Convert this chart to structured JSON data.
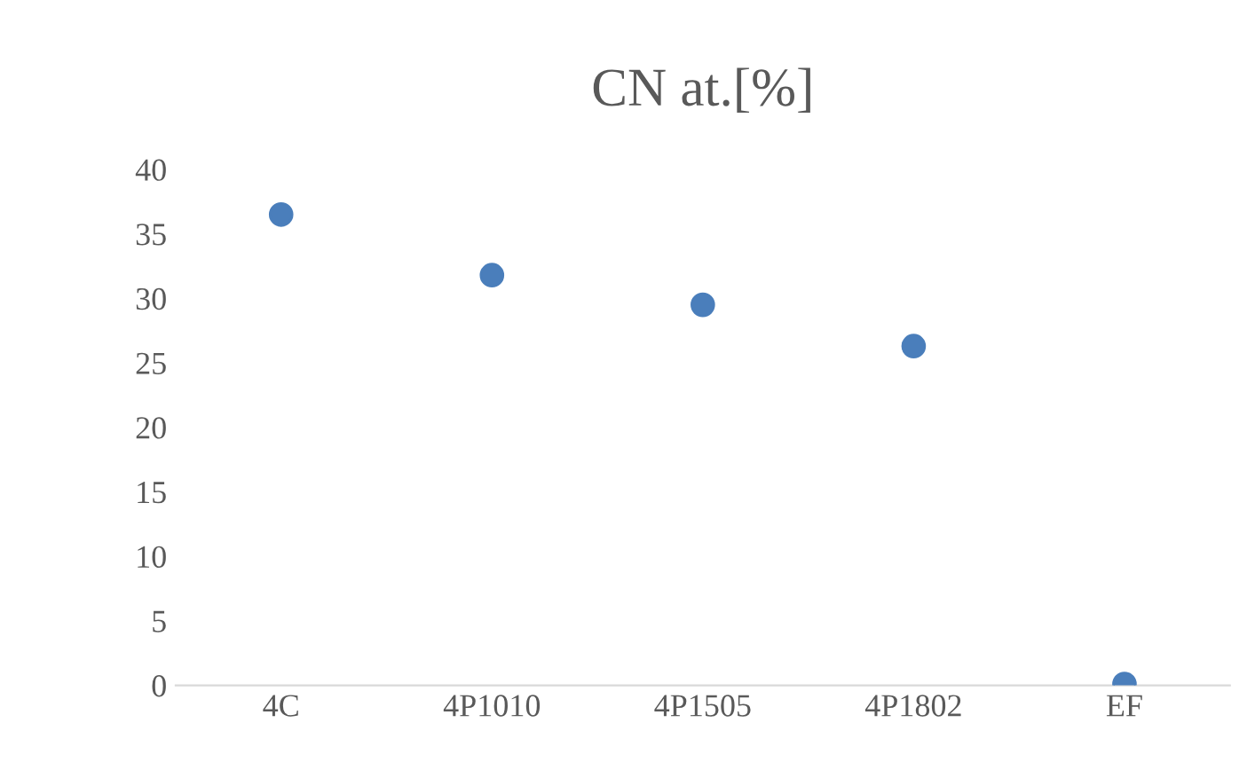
{
  "chart_data": {
    "type": "scatter",
    "title": "CN at.[%]",
    "categories": [
      "4C",
      "4P1010",
      "4P1505",
      "4P1802",
      "EF"
    ],
    "series": [
      {
        "color": "#4a7ebb",
        "values": [
          36.5,
          31.8,
          29.5,
          26.3,
          0.1
        ]
      }
    ],
    "ylim": [
      0,
      40
    ],
    "yticks": [
      0,
      5,
      10,
      15,
      20,
      25,
      30,
      35,
      40
    ],
    "grid": false,
    "legend": false,
    "marker": "circle"
  }
}
